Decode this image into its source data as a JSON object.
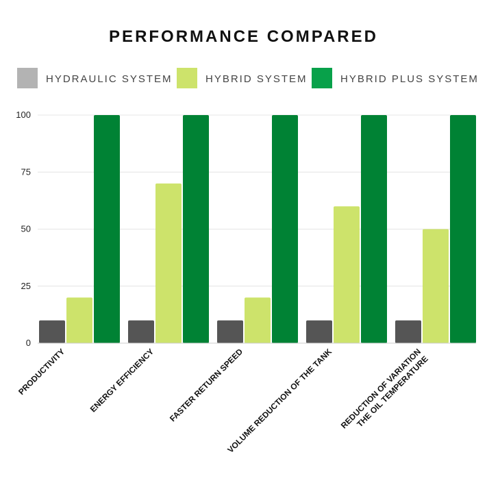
{
  "chart_data": {
    "type": "bar",
    "title": "PERFORMANCE COMPARED",
    "categories": [
      [
        "PRODUCTIVITY"
      ],
      [
        "ENERGY EFFICIENCY"
      ],
      [
        "FASTER RETURN SPEED"
      ],
      [
        "VOLUME REDUCTION OF THE TANK"
      ],
      [
        "REDUCTION OF VARIATION",
        "THE OIL TEMPERATURE"
      ]
    ],
    "series": [
      {
        "name": "HYDRAULIC SYSTEM",
        "values": [
          10,
          10,
          10,
          10,
          10
        ],
        "color": "#555555",
        "legend_color": "#b3b3b3"
      },
      {
        "name": "HYBRID SYSTEM",
        "values": [
          20,
          70,
          20,
          60,
          50
        ],
        "color": "#cde36b",
        "legend_color": "#cde36b"
      },
      {
        "name": "HYBRID PLUS SYSTEM",
        "values": [
          100,
          100,
          100,
          100,
          100
        ],
        "color": "#008234",
        "legend_color": "#08a14a"
      }
    ],
    "yticks": [
      0,
      25,
      50,
      75,
      100
    ],
    "ylim": [
      0,
      100
    ],
    "grid": true,
    "legend_position": "top"
  }
}
